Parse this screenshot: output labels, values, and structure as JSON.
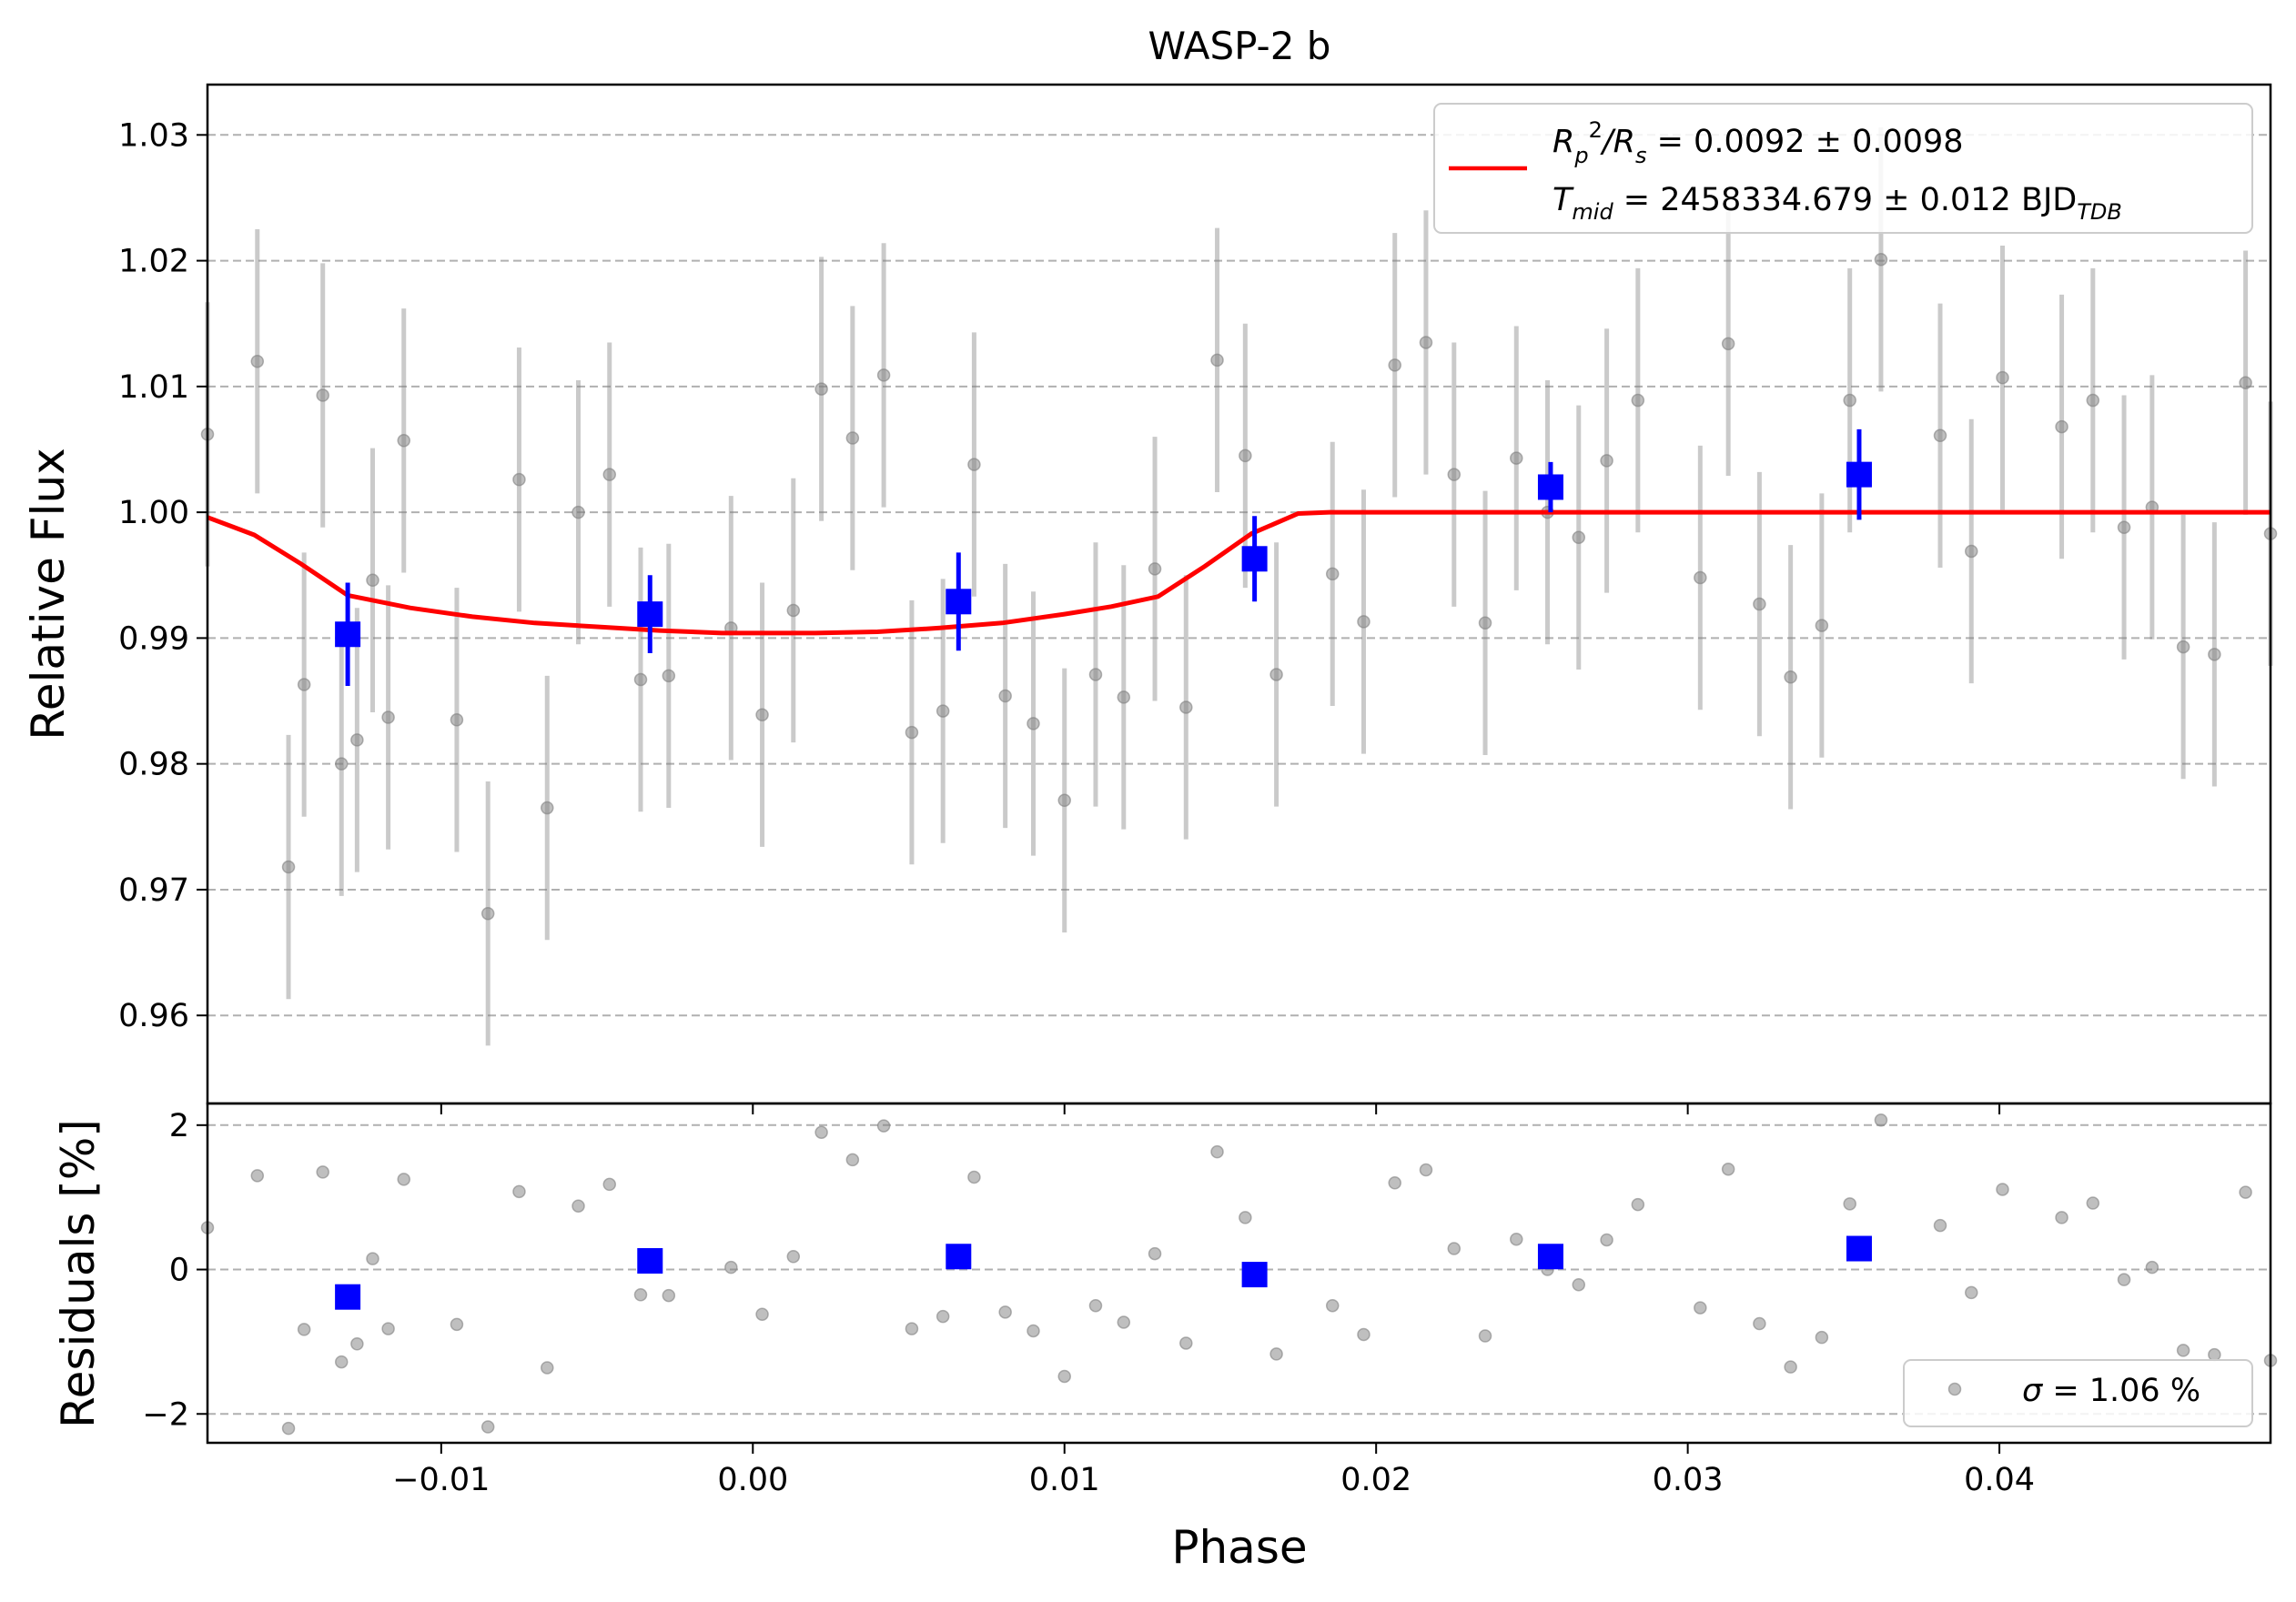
{
  "chart_data": [
    {
      "type": "scatter",
      "title": "WASP-2 b",
      "xlabel": "",
      "ylabel": "Relative Flux",
      "xlim": [
        -0.0175,
        0.0487
      ],
      "ylim": [
        0.953,
        1.034
      ],
      "grid": "horizontal dashed",
      "legend_placement": "top-right",
      "xticks": [
        -0.01,
        0.0,
        0.01,
        0.02,
        0.03,
        0.04
      ],
      "yticks": [
        0.96,
        0.97,
        0.98,
        0.99,
        1.0,
        1.01,
        1.02,
        1.03
      ],
      "ytick_labels": [
        "0.96",
        "0.97",
        "0.98",
        "0.99",
        "1.00",
        "1.01",
        "1.02",
        "1.03"
      ],
      "legend": {
        "line_1_main": "R",
        "line_1_sub_p": "p",
        "line_1_sup": "2",
        "line_1_slash": "/R",
        "line_1_sub_s": "s",
        "line_1_rest": " = 0.0092 ± 0.0098",
        "line_2_main": "T",
        "line_2_sub": "mid",
        "line_2_rest": " = 2458334.679 ± 0.012 BJD",
        "line_2_sub2": "TDB"
      },
      "series": [
        {
          "role": "unbinned data",
          "color": "#808080",
          "x": [
            -0.0175,
            -0.0159,
            -0.0149,
            -0.0144,
            -0.0138,
            -0.0132,
            -0.0127,
            -0.0122,
            -0.0117,
            -0.0112,
            -0.0095,
            -0.0085,
            -0.0075,
            -0.0066,
            -0.0056,
            -0.0046,
            -0.0036,
            -0.0027,
            -0.0007,
            0.0003,
            0.0013,
            0.0022,
            0.0032,
            0.0042,
            0.0051,
            0.0061,
            0.0071,
            0.0081,
            0.009,
            0.01,
            0.011,
            0.0119,
            0.0129,
            0.0139,
            0.0149,
            0.0158,
            0.0168,
            0.0186,
            0.0196,
            0.0206,
            0.0216,
            0.0225,
            0.0235,
            0.0245,
            0.0255,
            0.0265,
            0.0274,
            0.0284,
            0.0304,
            0.0313,
            0.0323,
            0.0333,
            0.0343,
            0.0352,
            0.0362,
            0.0381,
            0.0391,
            0.0401,
            0.042,
            0.043,
            0.044,
            0.0449,
            0.0459,
            0.0469,
            0.0479,
            0.0487
          ],
          "y": [
            1.0062,
            1.012,
            0.9718,
            0.9863,
            1.0093,
            0.98,
            0.9819,
            0.9946,
            0.9837,
            1.0057,
            0.9835,
            0.9681,
            1.0026,
            0.9765,
            1.0,
            1.003,
            0.9867,
            0.987,
            0.9908,
            0.9839,
            0.9922,
            1.0098,
            1.0059,
            1.0109,
            0.9825,
            0.9842,
            1.0038,
            0.9854,
            0.9832,
            0.9771,
            0.9871,
            0.9853,
            0.9955,
            0.9845,
            1.0121,
            1.0045,
            0.9871,
            0.9951,
            0.9913,
            1.0117,
            1.0135,
            1.003,
            0.9912,
            1.0043,
            1.0,
            0.998,
            1.0041,
            1.0089,
            0.9948,
            1.0134,
            0.9927,
            0.9869,
            0.991,
            1.0089,
            1.0201,
            1.0061,
            0.9969,
            1.0107,
            1.0068,
            1.0089,
            0.9988,
            1.0004,
            0.9893,
            0.9887,
            1.0103,
            0.9983
          ],
          "yerr": 0.0105
        },
        {
          "role": "binned data",
          "color": "#0000ff",
          "x": [
            -0.013,
            -0.0033,
            0.0066,
            0.0161,
            0.0256,
            0.0355
          ],
          "y": [
            0.9903,
            0.9919,
            0.9929,
            0.9963,
            1.002,
            1.003
          ],
          "yerr": [
            0.0041,
            0.0031,
            0.0039,
            0.0034,
            0.002,
            0.0036
          ]
        },
        {
          "role": "model",
          "color": "#ff0000",
          "x": [
            -0.0175,
            -0.016,
            -0.0145,
            -0.013,
            -0.011,
            -0.009,
            -0.007,
            -0.005,
            -0.003,
            -0.001,
            0.0,
            0.002,
            0.004,
            0.006,
            0.008,
            0.01,
            0.0115,
            0.013,
            0.0145,
            0.016,
            0.0175,
            0.0185,
            0.0487
          ],
          "y": [
            0.9996,
            0.9982,
            0.9959,
            0.9934,
            0.9924,
            0.9917,
            0.9912,
            0.9909,
            0.9906,
            0.9904,
            0.9904,
            0.9904,
            0.9905,
            0.9908,
            0.9912,
            0.9919,
            0.9925,
            0.9933,
            0.9957,
            0.9983,
            0.9999,
            1.0,
            1.0
          ]
        }
      ]
    },
    {
      "type": "scatter",
      "title": "",
      "xlabel": "Phase",
      "ylabel": "Residuals [%]",
      "xlim": [
        -0.0175,
        0.0487
      ],
      "ylim": [
        -2.4,
        2.3
      ],
      "grid": "horizontal dashed",
      "legend_placement": "bottom-right",
      "xticks": [
        -0.01,
        0.0,
        0.01,
        0.02,
        0.03,
        0.04
      ],
      "xtick_labels": [
        "−0.01",
        "0.00",
        "0.01",
        "0.02",
        "0.03",
        "0.04"
      ],
      "yticks": [
        -2,
        0,
        2
      ],
      "ytick_labels": [
        "−2",
        "0",
        "2"
      ],
      "legend": {
        "sigma_symbol": "σ",
        "sigma_rest": " = 1.06 %"
      },
      "series": [
        {
          "role": "unbinned residuals",
          "color": "#808080",
          "x": [
            -0.0175,
            -0.0159,
            -0.0149,
            -0.0144,
            -0.0138,
            -0.0132,
            -0.0127,
            -0.0122,
            -0.0117,
            -0.0112,
            -0.0095,
            -0.0085,
            -0.0075,
            -0.0066,
            -0.0056,
            -0.0046,
            -0.0036,
            -0.0027,
            -0.0007,
            0.0003,
            0.0013,
            0.0022,
            0.0032,
            0.0042,
            0.0051,
            0.0061,
            0.0071,
            0.0081,
            0.009,
            0.01,
            0.011,
            0.0119,
            0.0129,
            0.0139,
            0.0149,
            0.0158,
            0.0168,
            0.0186,
            0.0196,
            0.0206,
            0.0216,
            0.0225,
            0.0235,
            0.0245,
            0.0255,
            0.0265,
            0.0274,
            0.0284,
            0.0304,
            0.0313,
            0.0323,
            0.0333,
            0.0343,
            0.0352,
            0.0362,
            0.0381,
            0.0391,
            0.0401,
            0.042,
            0.043,
            0.044,
            0.0449,
            0.0459,
            0.0469,
            0.0479,
            0.0487
          ],
          "y": [
            0.58,
            1.3,
            -2.2,
            -0.83,
            1.35,
            -1.28,
            -1.03,
            0.15,
            -0.82,
            1.25,
            -0.76,
            -2.18,
            1.08,
            -1.36,
            0.88,
            1.18,
            -0.35,
            -0.36,
            0.03,
            -0.62,
            0.18,
            1.9,
            1.52,
            1.99,
            -0.82,
            -0.65,
            1.28,
            -0.59,
            -0.85,
            -1.48,
            -0.5,
            -0.73,
            0.22,
            -1.02,
            1.63,
            0.72,
            -1.17,
            -0.5,
            -0.9,
            1.2,
            1.38,
            0.29,
            -0.92,
            0.42,
            0.0,
            -0.21,
            0.41,
            0.9,
            -0.53,
            1.39,
            -0.75,
            -1.35,
            -0.94,
            0.91,
            2.07,
            0.61,
            -0.32,
            1.11,
            0.72,
            0.92,
            -0.14,
            0.03,
            -1.12,
            -1.18,
            1.07,
            -1.26
          ]
        },
        {
          "role": "binned residuals",
          "color": "#0000ff",
          "x": [
            -0.013,
            -0.0033,
            0.0066,
            0.0161,
            0.0256,
            0.0355
          ],
          "y": [
            -0.38,
            0.12,
            0.18,
            -0.07,
            0.18,
            0.29
          ]
        }
      ]
    }
  ]
}
